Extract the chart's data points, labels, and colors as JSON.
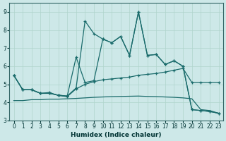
{
  "xlabel": "Humidex (Indice chaleur)",
  "bg_color": "#cde8e8",
  "line_color": "#1a6b6b",
  "xlim": [
    -0.5,
    23.5
  ],
  "ylim": [
    3,
    9.5
  ],
  "yticks": [
    3,
    4,
    5,
    6,
    7,
    8,
    9
  ],
  "xticks": [
    0,
    1,
    2,
    3,
    4,
    5,
    6,
    7,
    8,
    9,
    10,
    11,
    12,
    13,
    14,
    15,
    16,
    17,
    18,
    19,
    20,
    21,
    22,
    23
  ],
  "grid_color": "#b0d4cc",
  "line1_y": [
    5.5,
    4.7,
    4.7,
    4.5,
    4.5,
    4.4,
    4.35,
    4.8,
    8.5,
    7.8,
    7.5,
    7.3,
    7.65,
    6.6,
    9.0,
    6.6,
    6.65,
    6.1,
    6.3,
    6.0,
    3.6,
    3.55,
    3.5,
    3.4
  ],
  "line2_y": [
    5.5,
    4.7,
    4.7,
    4.5,
    4.5,
    4.4,
    4.35,
    6.5,
    5.1,
    5.2,
    7.5,
    7.3,
    7.65,
    6.6,
    9.0,
    6.6,
    6.65,
    6.1,
    6.3,
    6.0,
    3.6,
    3.55,
    3.5,
    3.4
  ],
  "line3_y": [
    5.5,
    4.7,
    4.7,
    4.5,
    4.55,
    4.38,
    4.32,
    4.75,
    5.0,
    5.15,
    5.25,
    5.3,
    5.35,
    5.4,
    5.5,
    5.55,
    5.6,
    5.68,
    5.78,
    5.88,
    5.1,
    5.1,
    5.1,
    5.1
  ],
  "line4_y": [
    4.1,
    4.1,
    4.15,
    4.15,
    4.18,
    4.18,
    4.2,
    4.22,
    4.25,
    4.28,
    4.3,
    4.32,
    4.33,
    4.34,
    4.35,
    4.33,
    4.32,
    4.3,
    4.28,
    4.25,
    4.2,
    3.6,
    3.55,
    3.4
  ]
}
